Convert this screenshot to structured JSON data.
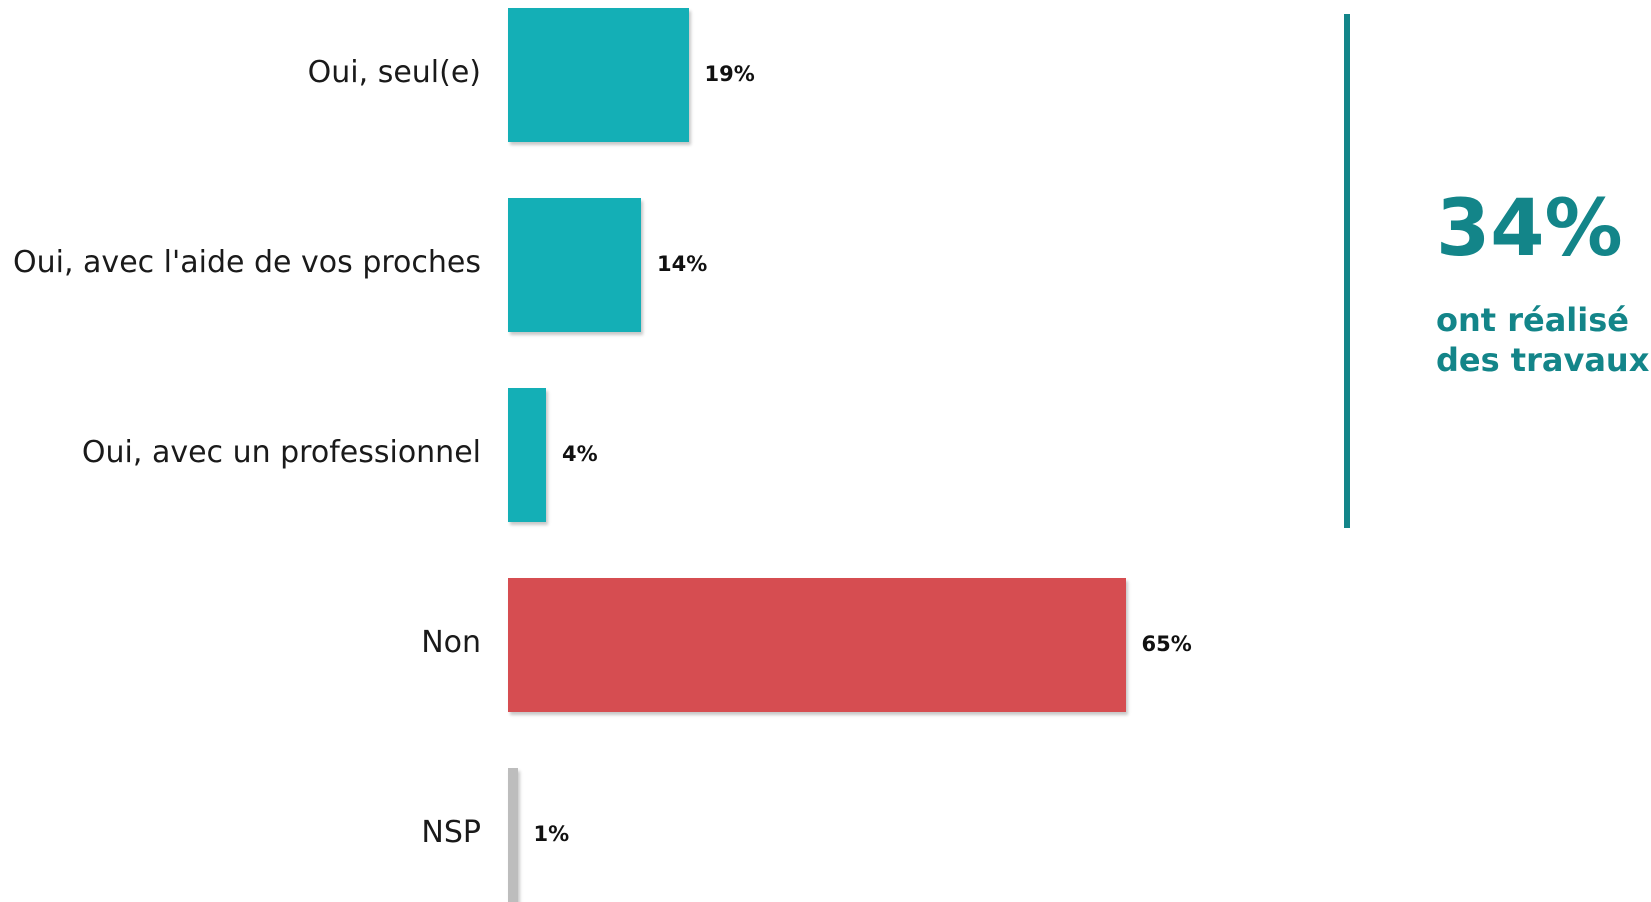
{
  "chart_data": {
    "type": "bar",
    "orientation": "horizontal",
    "categories": [
      "Oui, seul(e)",
      "Oui, avec l'aide de vos proches",
      "Oui, avec un professionnel",
      "Non",
      "NSP"
    ],
    "values": [
      19,
      14,
      4,
      65,
      1
    ],
    "value_labels": [
      "19%",
      "14%",
      "4%",
      "65%",
      "1%"
    ],
    "bar_colors": [
      "#14afb6",
      "#14afb6",
      "#14afb6",
      "#d64d51",
      "#bdbdbd"
    ],
    "unit": "%",
    "xlim": [
      0,
      100
    ],
    "grid": false,
    "legend": "none",
    "title": "",
    "xlabel": "",
    "ylabel": ""
  },
  "callout": {
    "value": "34%",
    "line1": "ont réalisé",
    "line2": "des travaux",
    "color": "#138589"
  }
}
